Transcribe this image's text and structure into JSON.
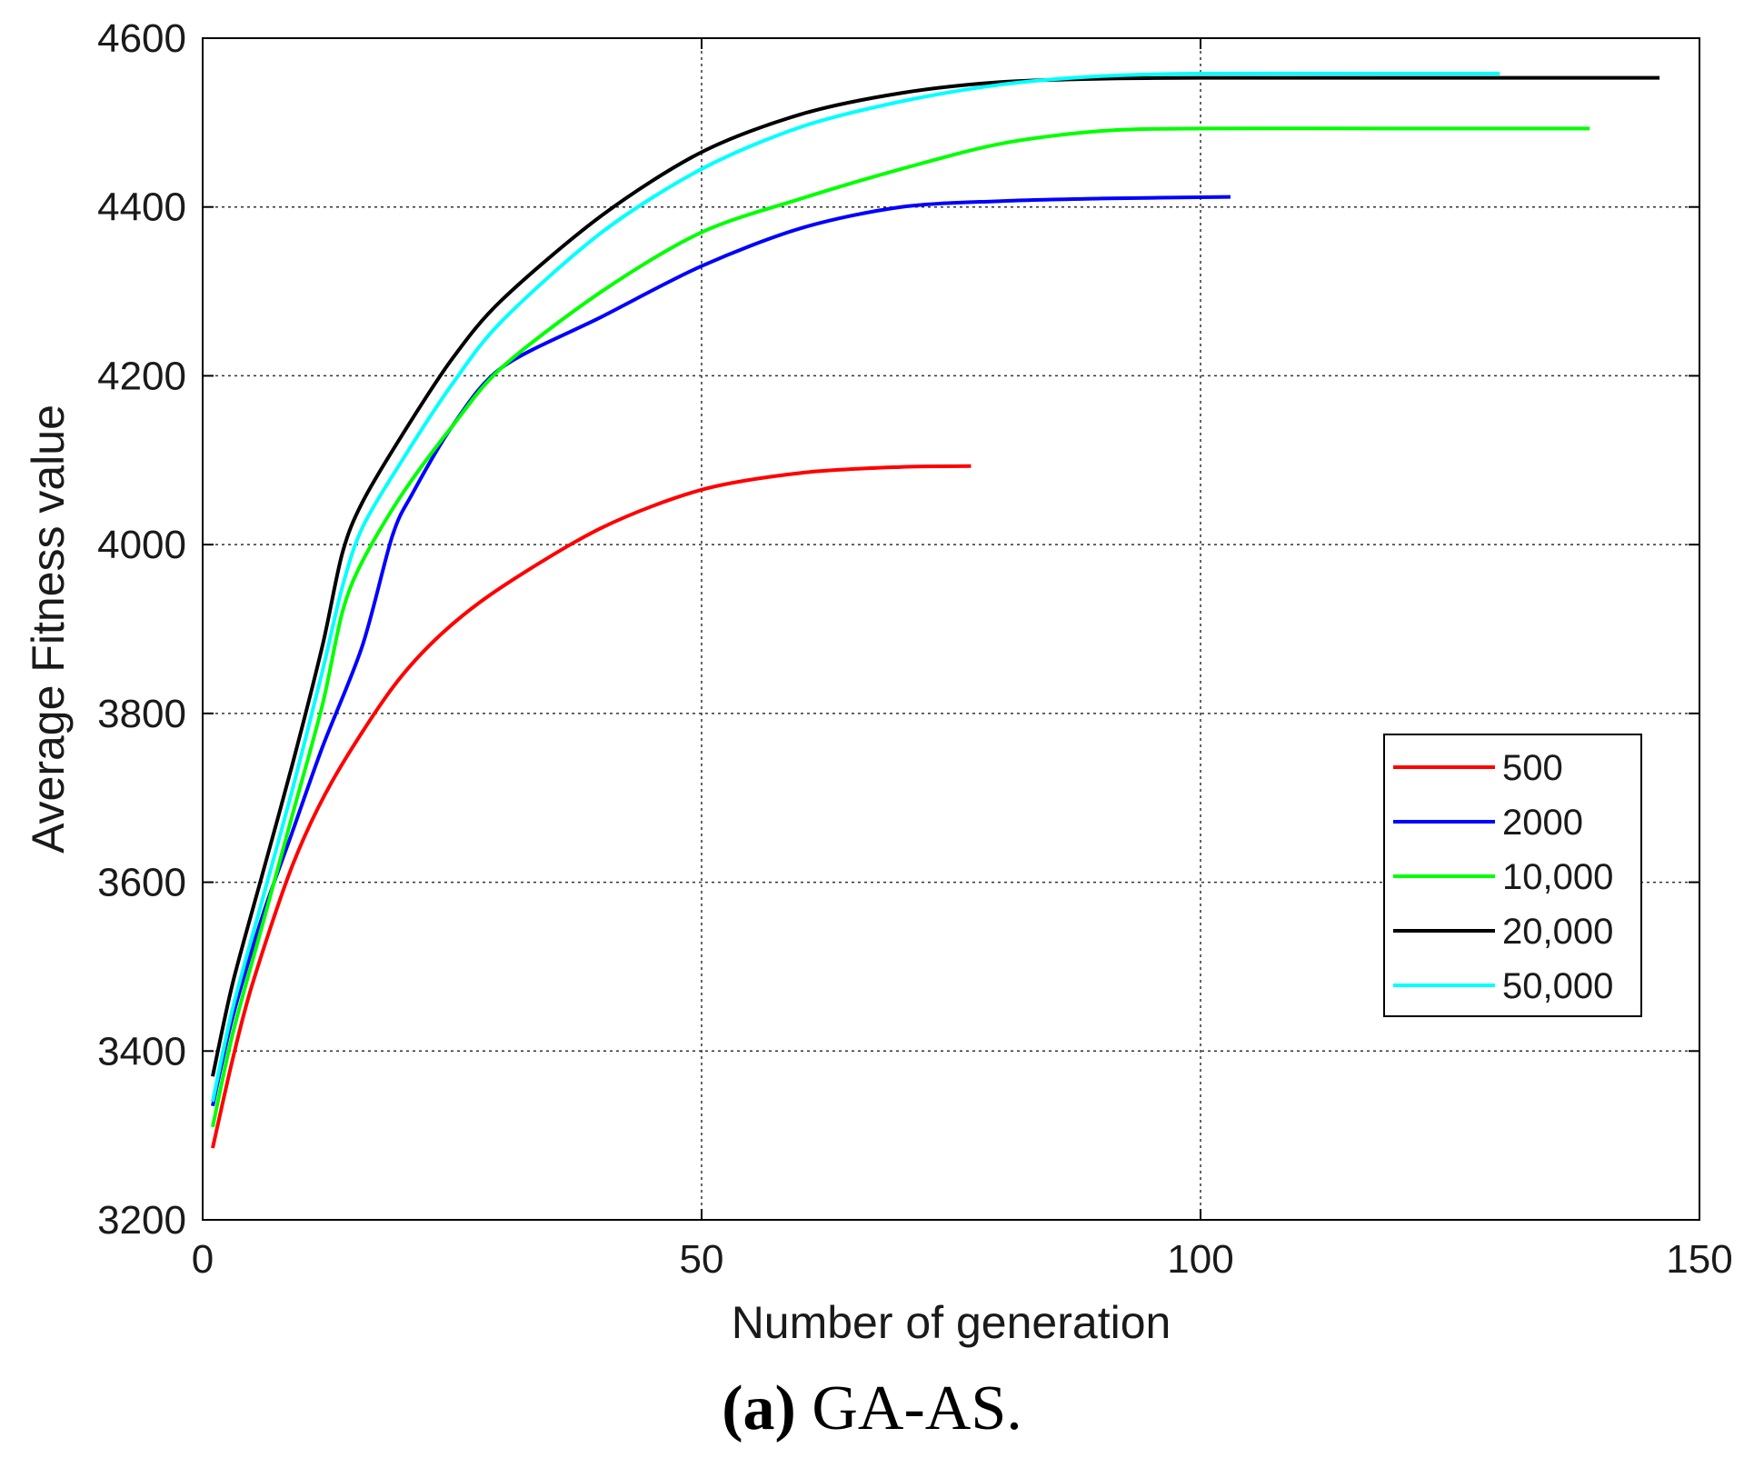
{
  "chart_data": {
    "type": "line",
    "xlabel": "Number of generation",
    "ylabel": "Average Fitness value",
    "xlim": [
      0,
      150
    ],
    "ylim": [
      3200,
      4600
    ],
    "xticks": [
      0,
      50,
      100,
      150
    ],
    "yticks": [
      3200,
      3400,
      3600,
      3800,
      4000,
      4200,
      4400,
      4600
    ],
    "grid": true,
    "legend_position": "lower-right",
    "series": [
      {
        "name": "500",
        "color": "#ff0000",
        "x": [
          1,
          3,
          5,
          9,
          13,
          19,
          24,
          30,
          40,
          50,
          60,
          70,
          77
        ],
        "y": [
          3285,
          3390,
          3480,
          3620,
          3720,
          3830,
          3895,
          3950,
          4020,
          4065,
          4085,
          4092,
          4093
        ]
      },
      {
        "name": "2000",
        "color": "#0000ff",
        "x": [
          1,
          3,
          6,
          9,
          12,
          16,
          19,
          21,
          25,
          30,
          40,
          50,
          60,
          70,
          80,
          90,
          103
        ],
        "y": [
          3335,
          3440,
          3560,
          3660,
          3760,
          3880,
          4010,
          4060,
          4140,
          4210,
          4270,
          4330,
          4375,
          4400,
          4407,
          4410,
          4412
        ]
      },
      {
        "name": "10,000",
        "color": "#00ff00",
        "x": [
          1,
          3,
          6,
          9,
          12,
          14,
          16,
          20,
          25,
          30,
          40,
          50,
          60,
          70,
          80,
          90,
          100,
          120,
          139
        ],
        "y": [
          3310,
          3420,
          3550,
          3680,
          3810,
          3920,
          3980,
          4060,
          4140,
          4210,
          4300,
          4370,
          4410,
          4445,
          4475,
          4490,
          4493,
          4493,
          4493
        ]
      },
      {
        "name": "20,000",
        "color": "#000000",
        "x": [
          1,
          3,
          6,
          9,
          12,
          14,
          16,
          20,
          25,
          30,
          40,
          50,
          60,
          70,
          80,
          90,
          100,
          120,
          146
        ],
        "y": [
          3370,
          3480,
          3610,
          3740,
          3880,
          3990,
          4050,
          4130,
          4220,
          4290,
          4390,
          4465,
          4510,
          4535,
          4548,
          4552,
          4553,
          4553,
          4553
        ]
      },
      {
        "name": "50,000",
        "color": "#00ffff",
        "x": [
          1,
          3,
          6,
          9,
          12,
          14,
          16,
          20,
          25,
          30,
          40,
          50,
          60,
          70,
          80,
          90,
          100,
          120,
          130
        ],
        "y": [
          3340,
          3450,
          3580,
          3710,
          3850,
          3950,
          4020,
          4100,
          4190,
          4265,
          4370,
          4445,
          4495,
          4525,
          4545,
          4555,
          4558,
          4558,
          4558
        ]
      }
    ]
  },
  "caption": {
    "label": "(a)",
    "text": "GA-AS."
  }
}
